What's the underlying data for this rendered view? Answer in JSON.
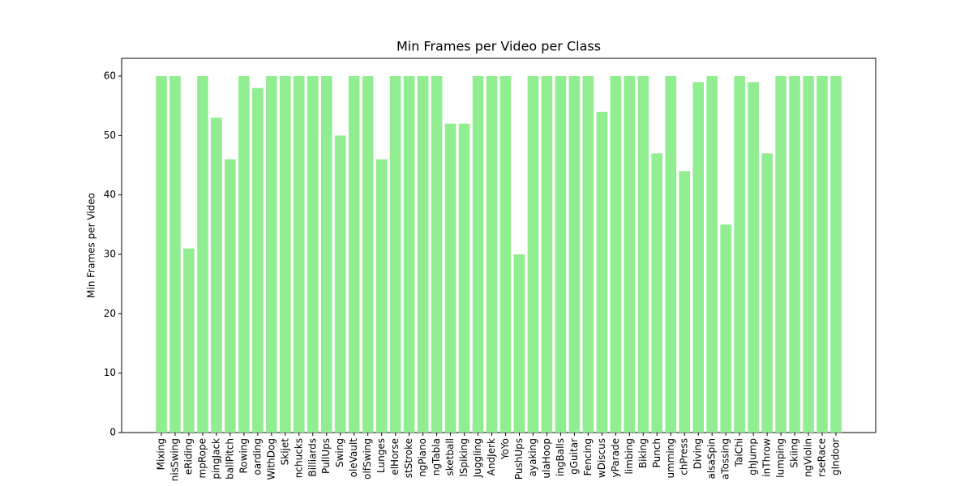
{
  "chart_data": {
    "type": "bar",
    "title": "Min Frames per Video per Class",
    "y_label": "Min Frames per Video",
    "categories": [
      "Mixing",
      "nisSwing",
      "eRiding",
      "mpRope",
      "pingJack",
      "ballPitch",
      "Rowing",
      "oarding",
      "WithDog",
      "Skijet",
      "nchucks",
      "Billiards",
      "PullUps",
      "Swing",
      "oleVault",
      "olfSwing",
      "Lunges",
      "elHorse",
      "stStroke",
      "ngPiano",
      "ngTabla",
      "sketball",
      "lSpiking",
      "Juggling",
      "AndJerk",
      "YoYo",
      "PushUps",
      "ayaking",
      "ulaHoop",
      "ingBalls",
      "gGuitar",
      "Fencing",
      "wDiscus",
      "yParade",
      "limbing",
      "Biking",
      "Punch",
      "umming",
      "chPress",
      "Diving",
      "alsaSpin",
      "aTossing",
      "TaiChi",
      "ghJump",
      "inThrow",
      "lumping",
      "Skiing",
      "ngViolin",
      "rseRace",
      "gIndoor"
    ],
    "values": [
      60,
      60,
      31,
      60,
      53,
      46,
      60,
      58,
      60,
      60,
      60,
      60,
      60,
      50,
      60,
      60,
      46,
      60,
      60,
      60,
      60,
      52,
      52,
      60,
      60,
      60,
      30,
      60,
      60,
      60,
      60,
      60,
      54,
      60,
      60,
      60,
      47,
      60,
      44,
      59,
      60,
      35,
      60,
      59,
      47,
      60,
      60,
      60,
      60,
      60
    ],
    "color": "#90ee90",
    "ylim": [
      0,
      63
    ],
    "yticks": [
      0,
      10,
      20,
      30,
      40,
      50,
      60
    ],
    "grid": false
  }
}
